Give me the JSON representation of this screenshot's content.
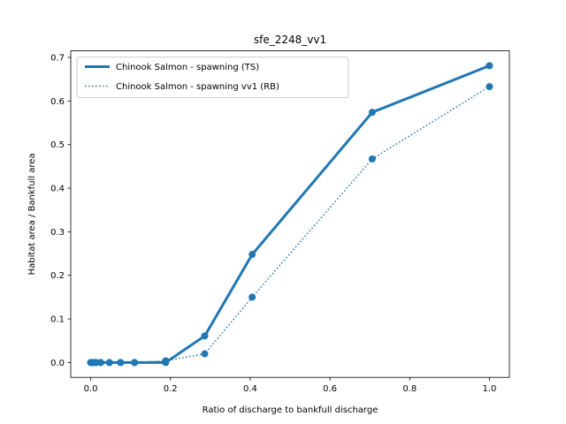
{
  "chart_data": {
    "type": "line",
    "title": "sfe_2248_vv1",
    "xlabel": "Ratio of discharge to bankfull discharge",
    "ylabel": "Habitat area / Bankfull area",
    "xlim": [
      -0.05,
      1.05
    ],
    "ylim": [
      -0.034,
      0.715
    ],
    "xticks": [
      0.0,
      0.2,
      0.4,
      0.6,
      0.8,
      1.0
    ],
    "xtick_labels": [
      "0.0",
      "0.2",
      "0.4",
      "0.6",
      "0.8",
      "1.0"
    ],
    "yticks": [
      0.0,
      0.1,
      0.2,
      0.3,
      0.4,
      0.5,
      0.6,
      0.7
    ],
    "ytick_labels": [
      "0.0",
      "0.1",
      "0.2",
      "0.3",
      "0.4",
      "0.5",
      "0.6",
      "0.7"
    ],
    "grid": false,
    "legend_position": "top-left",
    "series": [
      {
        "name": "Chinook Salmon - spawning (TS)",
        "style": "solid",
        "color": "#1f77b4",
        "x": [
          0.0,
          0.006,
          0.013,
          0.025,
          0.047,
          0.075,
          0.11,
          0.188,
          0.286,
          0.405,
          0.706,
          1.0
        ],
        "y": [
          0.0,
          0.0,
          0.0,
          0.0,
          0.0,
          0.0,
          0.0,
          0.0,
          0.061,
          0.248,
          0.574,
          0.681
        ]
      },
      {
        "name": "Chinook Salmon - spawning vv1 (RB)",
        "style": "dotted",
        "color": "#1f77b4",
        "x": [
          0.0,
          0.006,
          0.013,
          0.025,
          0.047,
          0.075,
          0.11,
          0.188,
          0.286,
          0.405,
          0.706,
          1.0
        ],
        "y": [
          0.0,
          0.0,
          0.0,
          0.0,
          0.0,
          0.0,
          0.0,
          0.004,
          0.02,
          0.15,
          0.467,
          0.633
        ]
      }
    ]
  }
}
